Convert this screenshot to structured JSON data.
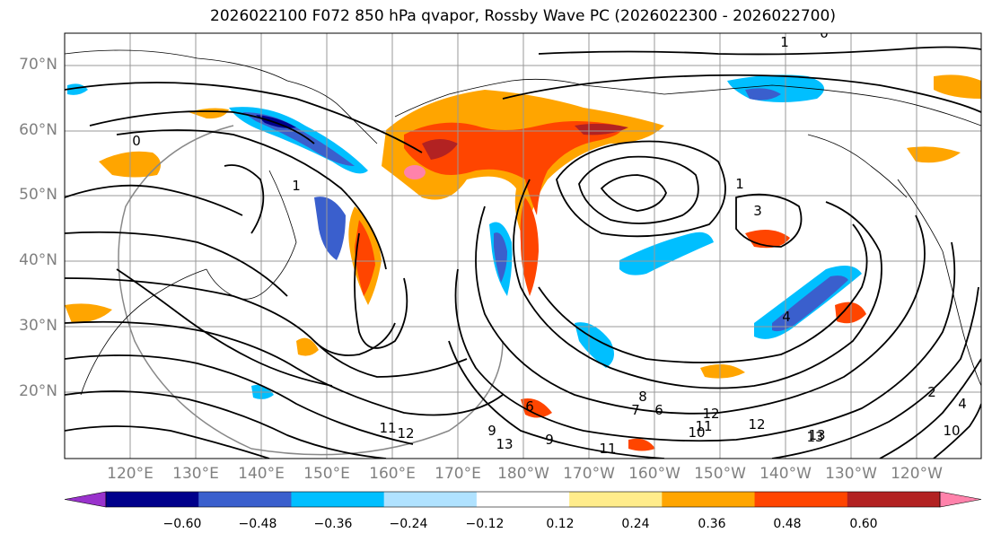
{
  "title": "2026022100 F072 850 hPa qvapor, Rossby Wave PC (2026022300 - 2026022700)",
  "latitude_labels": [
    "70°N",
    "60°N",
    "50°N",
    "40°N",
    "30°N",
    "20°N"
  ],
  "longitude_labels": [
    "120°E",
    "130°E",
    "140°E",
    "150°E",
    "160°E",
    "170°E",
    "180°W",
    "170°W",
    "160°W",
    "150°W",
    "140°W",
    "130°W",
    "120°W"
  ],
  "colorbar": {
    "colors": [
      "#9932cc",
      "#00008b",
      "#3a5fcd",
      "#00bfff",
      "#b0e2ff",
      "#ffffff",
      "#ffec8b",
      "#ffa500",
      "#ff4500",
      "#b22222",
      "#ff82ab"
    ],
    "tick_labels": [
      "−0.60",
      "−0.48",
      "−0.36",
      "−0.24",
      "−0.12",
      "0.12",
      "0.24",
      "0.36",
      "0.48",
      "0.60"
    ]
  },
  "contour_labels": [
    "1",
    "0",
    "0",
    "1",
    "1",
    "3",
    "4",
    "6",
    "8",
    "7",
    "6",
    "9",
    "9",
    "11",
    "12",
    "13",
    "11",
    "12",
    "13",
    "10",
    "11",
    "12",
    "13",
    "2",
    "4",
    "10"
  ]
}
